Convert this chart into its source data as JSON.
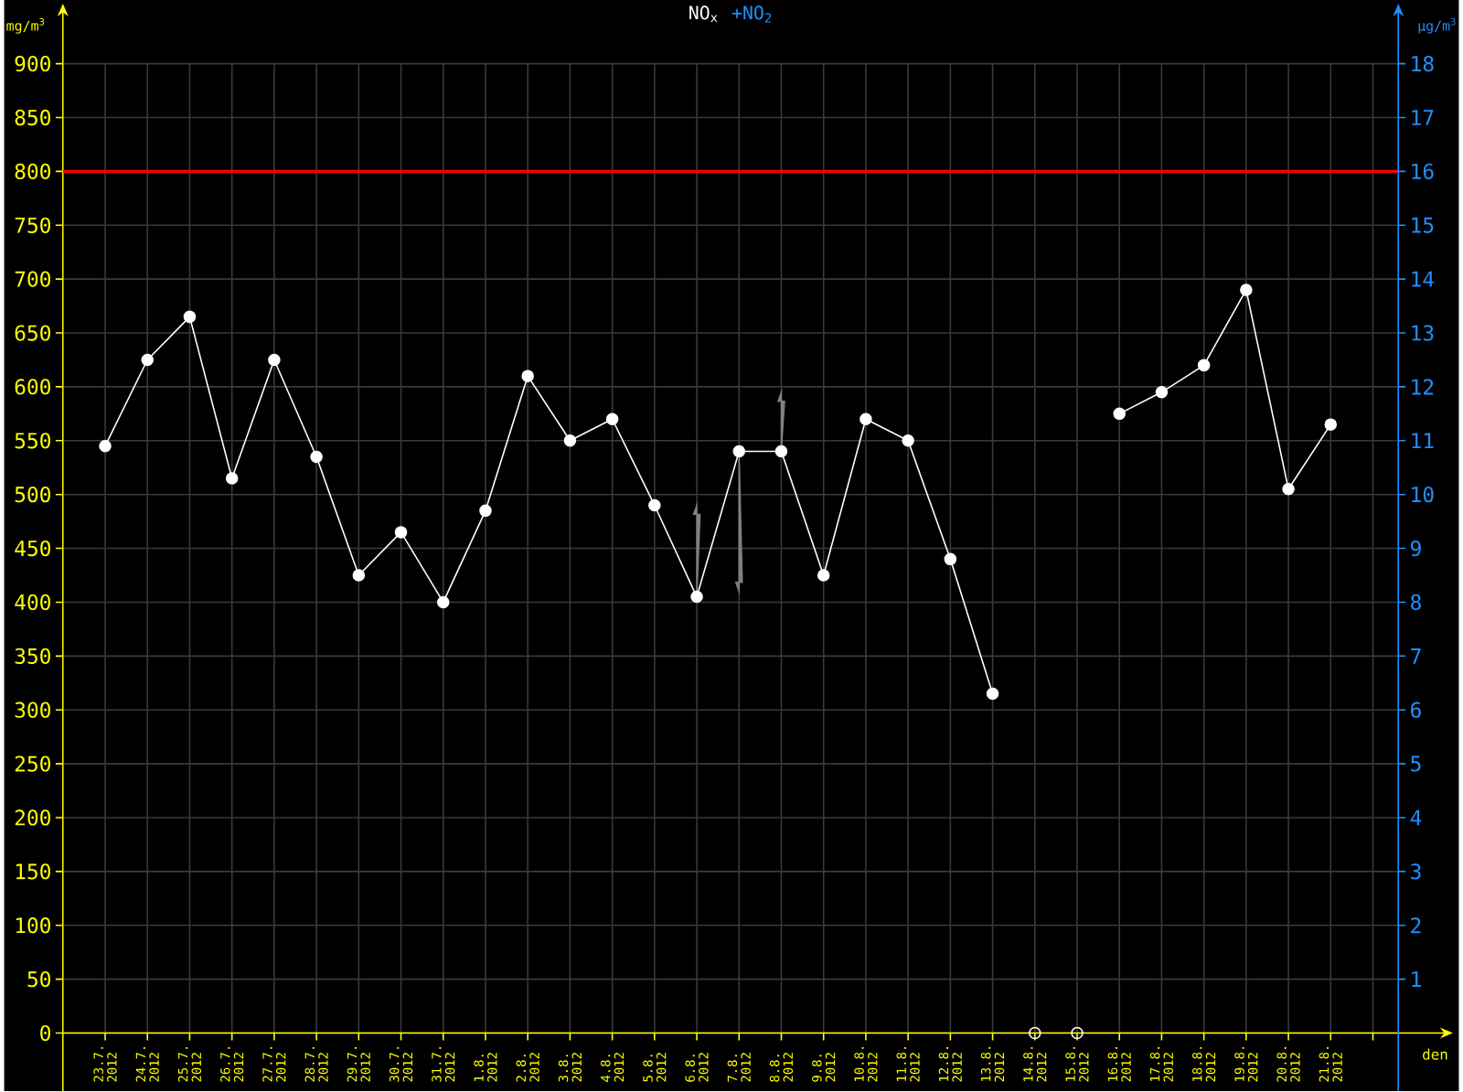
{
  "chart_data": {
    "type": "line",
    "categories": [
      "23.7. 2012",
      "24.7. 2012",
      "25.7. 2012",
      "26.7. 2012",
      "27.7. 2012",
      "28.7. 2012",
      "29.7. 2012",
      "30.7. 2012",
      "31.7. 2012",
      "1.8. 2012",
      "2.8. 2012",
      "3.8. 2012",
      "4.8. 2012",
      "5.8. 2012",
      "6.8. 2012",
      "7.8. 2012",
      "8.8. 2012",
      "9.8. 2012",
      "10.8. 2012",
      "11.8. 2012",
      "12.8. 2012",
      "13.8. 2012",
      "14.8. 2012",
      "15.8. 2012",
      "16.8. 2012",
      "17.8. 2012",
      "18.8. 2012",
      "19.8. 2012",
      "20.8. 2012",
      "21.8. 2012",
      null
    ],
    "series": [
      {
        "name": "NO$_{x}$",
        "color": "#ffffff",
        "values": [
          545,
          625,
          665,
          515,
          625,
          535,
          425,
          465,
          400,
          485,
          610,
          550,
          570,
          490,
          405,
          540,
          540,
          425,
          570,
          550,
          440,
          315,
          null,
          null,
          575,
          595,
          620,
          690,
          505,
          565,
          null
        ],
        "errors": [
          null,
          null,
          null,
          null,
          null,
          null,
          null,
          null,
          null,
          null,
          null,
          null,
          null,
          null,
          [
            405,
            490
          ],
          [
            410,
            540
          ],
          [
            540,
            595
          ],
          null,
          null,
          null,
          null,
          null,
          null,
          null,
          null,
          null,
          null,
          null,
          null,
          null,
          null
        ]
      },
      {
        "name": "+NO$_{2}$",
        "color": "#1e90ff",
        "axis": "y2",
        "values": [
          null,
          null,
          null,
          null,
          null,
          null,
          null,
          null,
          null,
          null,
          null,
          null,
          null,
          null,
          null,
          null,
          null,
          null,
          null,
          null,
          null,
          null,
          null,
          null,
          null,
          null,
          null,
          null,
          null,
          null,
          null
        ]
      },
      {
        "type": "scatter",
        "color": "#ffffff",
        "values": [
          null,
          null,
          null,
          null,
          null,
          null,
          null,
          null,
          null,
          null,
          null,
          null,
          null,
          null,
          null,
          null,
          null,
          null,
          null,
          null,
          null,
          null,
          0,
          0,
          null,
          null,
          null,
          null,
          null,
          null,
          null
        ]
      }
    ],
    "xlabel": "den",
    "ylabel": "mg/m$^{3}$",
    "y2label": "µg/m$^{3}$",
    "ylim": [
      0,
      900
    ],
    "yticks": [
      0,
      50,
      100,
      150,
      200,
      250,
      300,
      350,
      400,
      450,
      500,
      550,
      600,
      650,
      700,
      750,
      800,
      850,
      900
    ],
    "y2lim": [
      0,
      18
    ],
    "y2ticks": [
      1,
      2,
      3,
      4,
      5,
      6,
      7,
      8,
      9,
      10,
      11,
      12,
      13,
      14,
      15,
      16,
      17,
      18
    ],
    "ref_lines": [
      {
        "axis": "y",
        "value": 800,
        "color": "#ff0000"
      }
    ],
    "grid": true,
    "legend": "top",
    "marker": "circle"
  }
}
